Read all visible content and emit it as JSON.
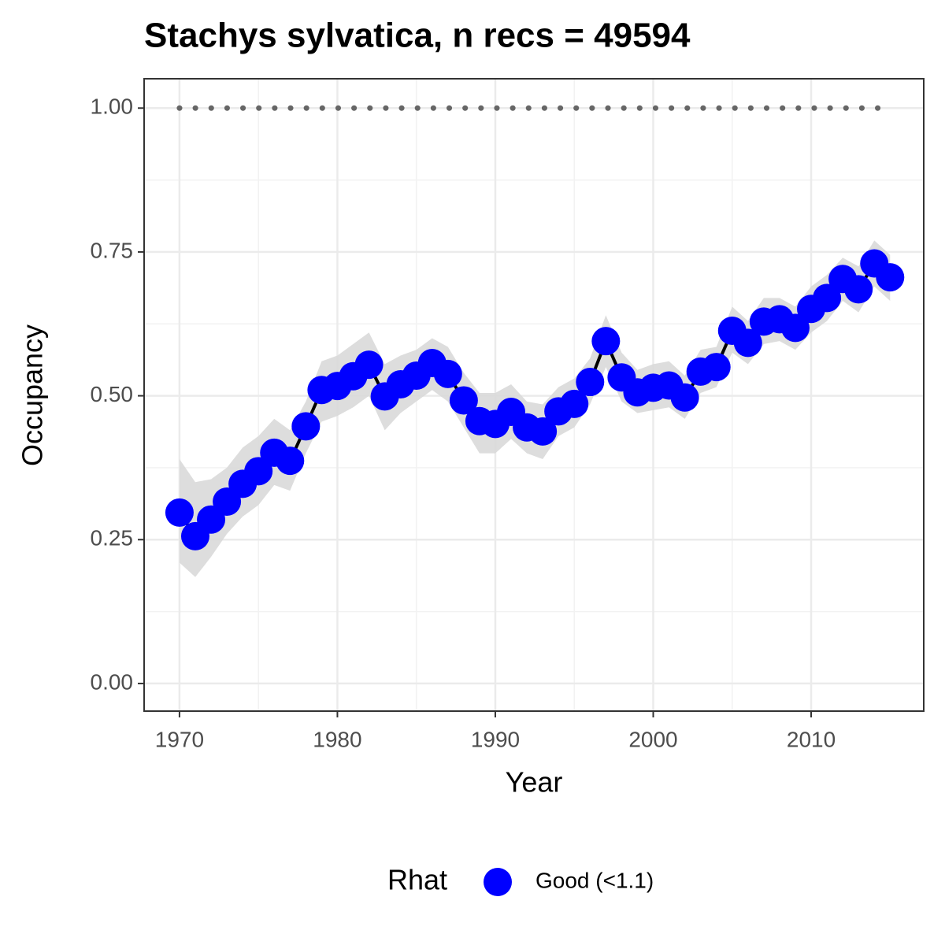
{
  "chart_data": {
    "type": "line",
    "title": "Stachys sylvatica, n recs = 49594",
    "x_label": "Year",
    "y_label": "Occupancy",
    "x": [
      1970,
      1971,
      1972,
      1973,
      1974,
      1975,
      1976,
      1977,
      1978,
      1979,
      1980,
      1981,
      1982,
      1983,
      1984,
      1985,
      1986,
      1987,
      1988,
      1989,
      1990,
      1991,
      1992,
      1993,
      1994,
      1995,
      1996,
      1997,
      1998,
      1999,
      2000,
      2001,
      2002,
      2003,
      2004,
      2005,
      2006,
      2007,
      2008,
      2009,
      2010,
      2011,
      2012,
      2013,
      2014,
      2015
    ],
    "series": [
      {
        "name": "Good (<1.1)",
        "color": "#0000ff",
        "values": [
          0.297,
          0.256,
          0.285,
          0.316,
          0.347,
          0.369,
          0.401,
          0.387,
          0.447,
          0.51,
          0.517,
          0.534,
          0.554,
          0.499,
          0.52,
          0.535,
          0.557,
          0.538,
          0.492,
          0.456,
          0.451,
          0.472,
          0.445,
          0.438,
          0.473,
          0.486,
          0.524,
          0.595,
          0.532,
          0.506,
          0.514,
          0.518,
          0.497,
          0.542,
          0.55,
          0.613,
          0.592,
          0.629,
          0.633,
          0.618,
          0.651,
          0.67,
          0.703,
          0.685,
          0.73,
          0.706
        ],
        "lower": [
          0.21,
          0.185,
          0.22,
          0.26,
          0.29,
          0.31,
          0.345,
          0.335,
          0.4,
          0.455,
          0.465,
          0.48,
          0.5,
          0.44,
          0.47,
          0.49,
          0.51,
          0.49,
          0.445,
          0.4,
          0.4,
          0.425,
          0.4,
          0.39,
          0.43,
          0.445,
          0.485,
          0.55,
          0.49,
          0.47,
          0.475,
          0.48,
          0.46,
          0.505,
          0.515,
          0.575,
          0.555,
          0.59,
          0.595,
          0.58,
          0.61,
          0.63,
          0.665,
          0.645,
          0.69,
          0.665
        ],
        "upper": [
          0.39,
          0.35,
          0.355,
          0.375,
          0.41,
          0.43,
          0.46,
          0.44,
          0.49,
          0.56,
          0.57,
          0.59,
          0.61,
          0.555,
          0.57,
          0.58,
          0.6,
          0.585,
          0.54,
          0.505,
          0.505,
          0.52,
          0.49,
          0.485,
          0.515,
          0.53,
          0.565,
          0.64,
          0.575,
          0.545,
          0.555,
          0.56,
          0.535,
          0.58,
          0.585,
          0.655,
          0.63,
          0.67,
          0.67,
          0.655,
          0.69,
          0.71,
          0.74,
          0.725,
          0.77,
          0.745
        ]
      }
    ],
    "line_color": "#000000",
    "ribbon_color": "#d9d9d9",
    "reference_line": {
      "value": 1,
      "from": 1970,
      "to": 2015,
      "color": "#666666"
    },
    "xlim": [
      1967.76,
      2017.13
    ],
    "ylim": [
      -0.048,
      1.051
    ],
    "xticks": [
      1970,
      1980,
      1990,
      2000,
      2010
    ],
    "yticks": [
      {
        "value": 0,
        "label": "0.00"
      },
      {
        "value": 0.25,
        "label": "0.25"
      },
      {
        "value": 0.5,
        "label": "0.50"
      },
      {
        "value": 0.75,
        "label": "0.75"
      },
      {
        "value": 1,
        "label": "1.00"
      }
    ],
    "grid": true,
    "minor_grid": true,
    "legend_title": "Rhat",
    "legend_position": "bottom"
  }
}
